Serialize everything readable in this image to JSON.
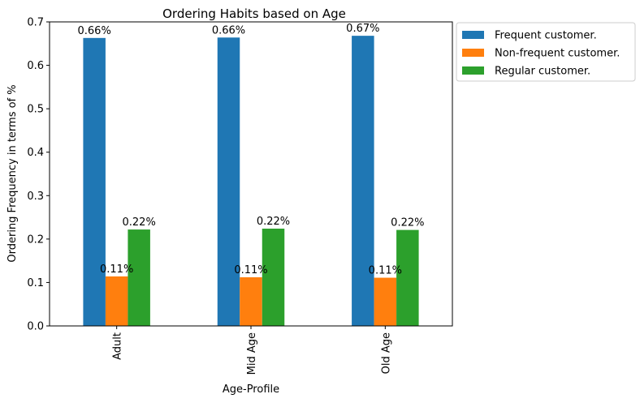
{
  "chart_data": {
    "type": "bar",
    "title": "Ordering Habits based on Age",
    "xlabel": "Age-Profile",
    "ylabel": "Ordering Frequency in terms of %",
    "categories": [
      "Adult",
      "Mid Age",
      "Old Age"
    ],
    "series": [
      {
        "name": "Frequent customer.",
        "color": "#1f77b4",
        "values": [
          0.663,
          0.664,
          0.668
        ],
        "labels": [
          "0.66%",
          "0.66%",
          "0.67%"
        ]
      },
      {
        "name": "Non-frequent customer.",
        "color": "#ff7f0e",
        "values": [
          0.114,
          0.112,
          0.111
        ],
        "labels": [
          "0.11%",
          "0.11%",
          "0.11%"
        ]
      },
      {
        "name": "Regular customer.",
        "color": "#2ca02c",
        "values": [
          0.222,
          0.224,
          0.221
        ],
        "labels": [
          "0.22%",
          "0.22%",
          "0.22%"
        ]
      }
    ],
    "ylim": [
      0,
      0.7
    ],
    "yticks": [
      "0.0",
      "0.1",
      "0.2",
      "0.3",
      "0.4",
      "0.5",
      "0.6",
      "0.7"
    ],
    "grid": false,
    "legend_position": "outside-top-right"
  }
}
